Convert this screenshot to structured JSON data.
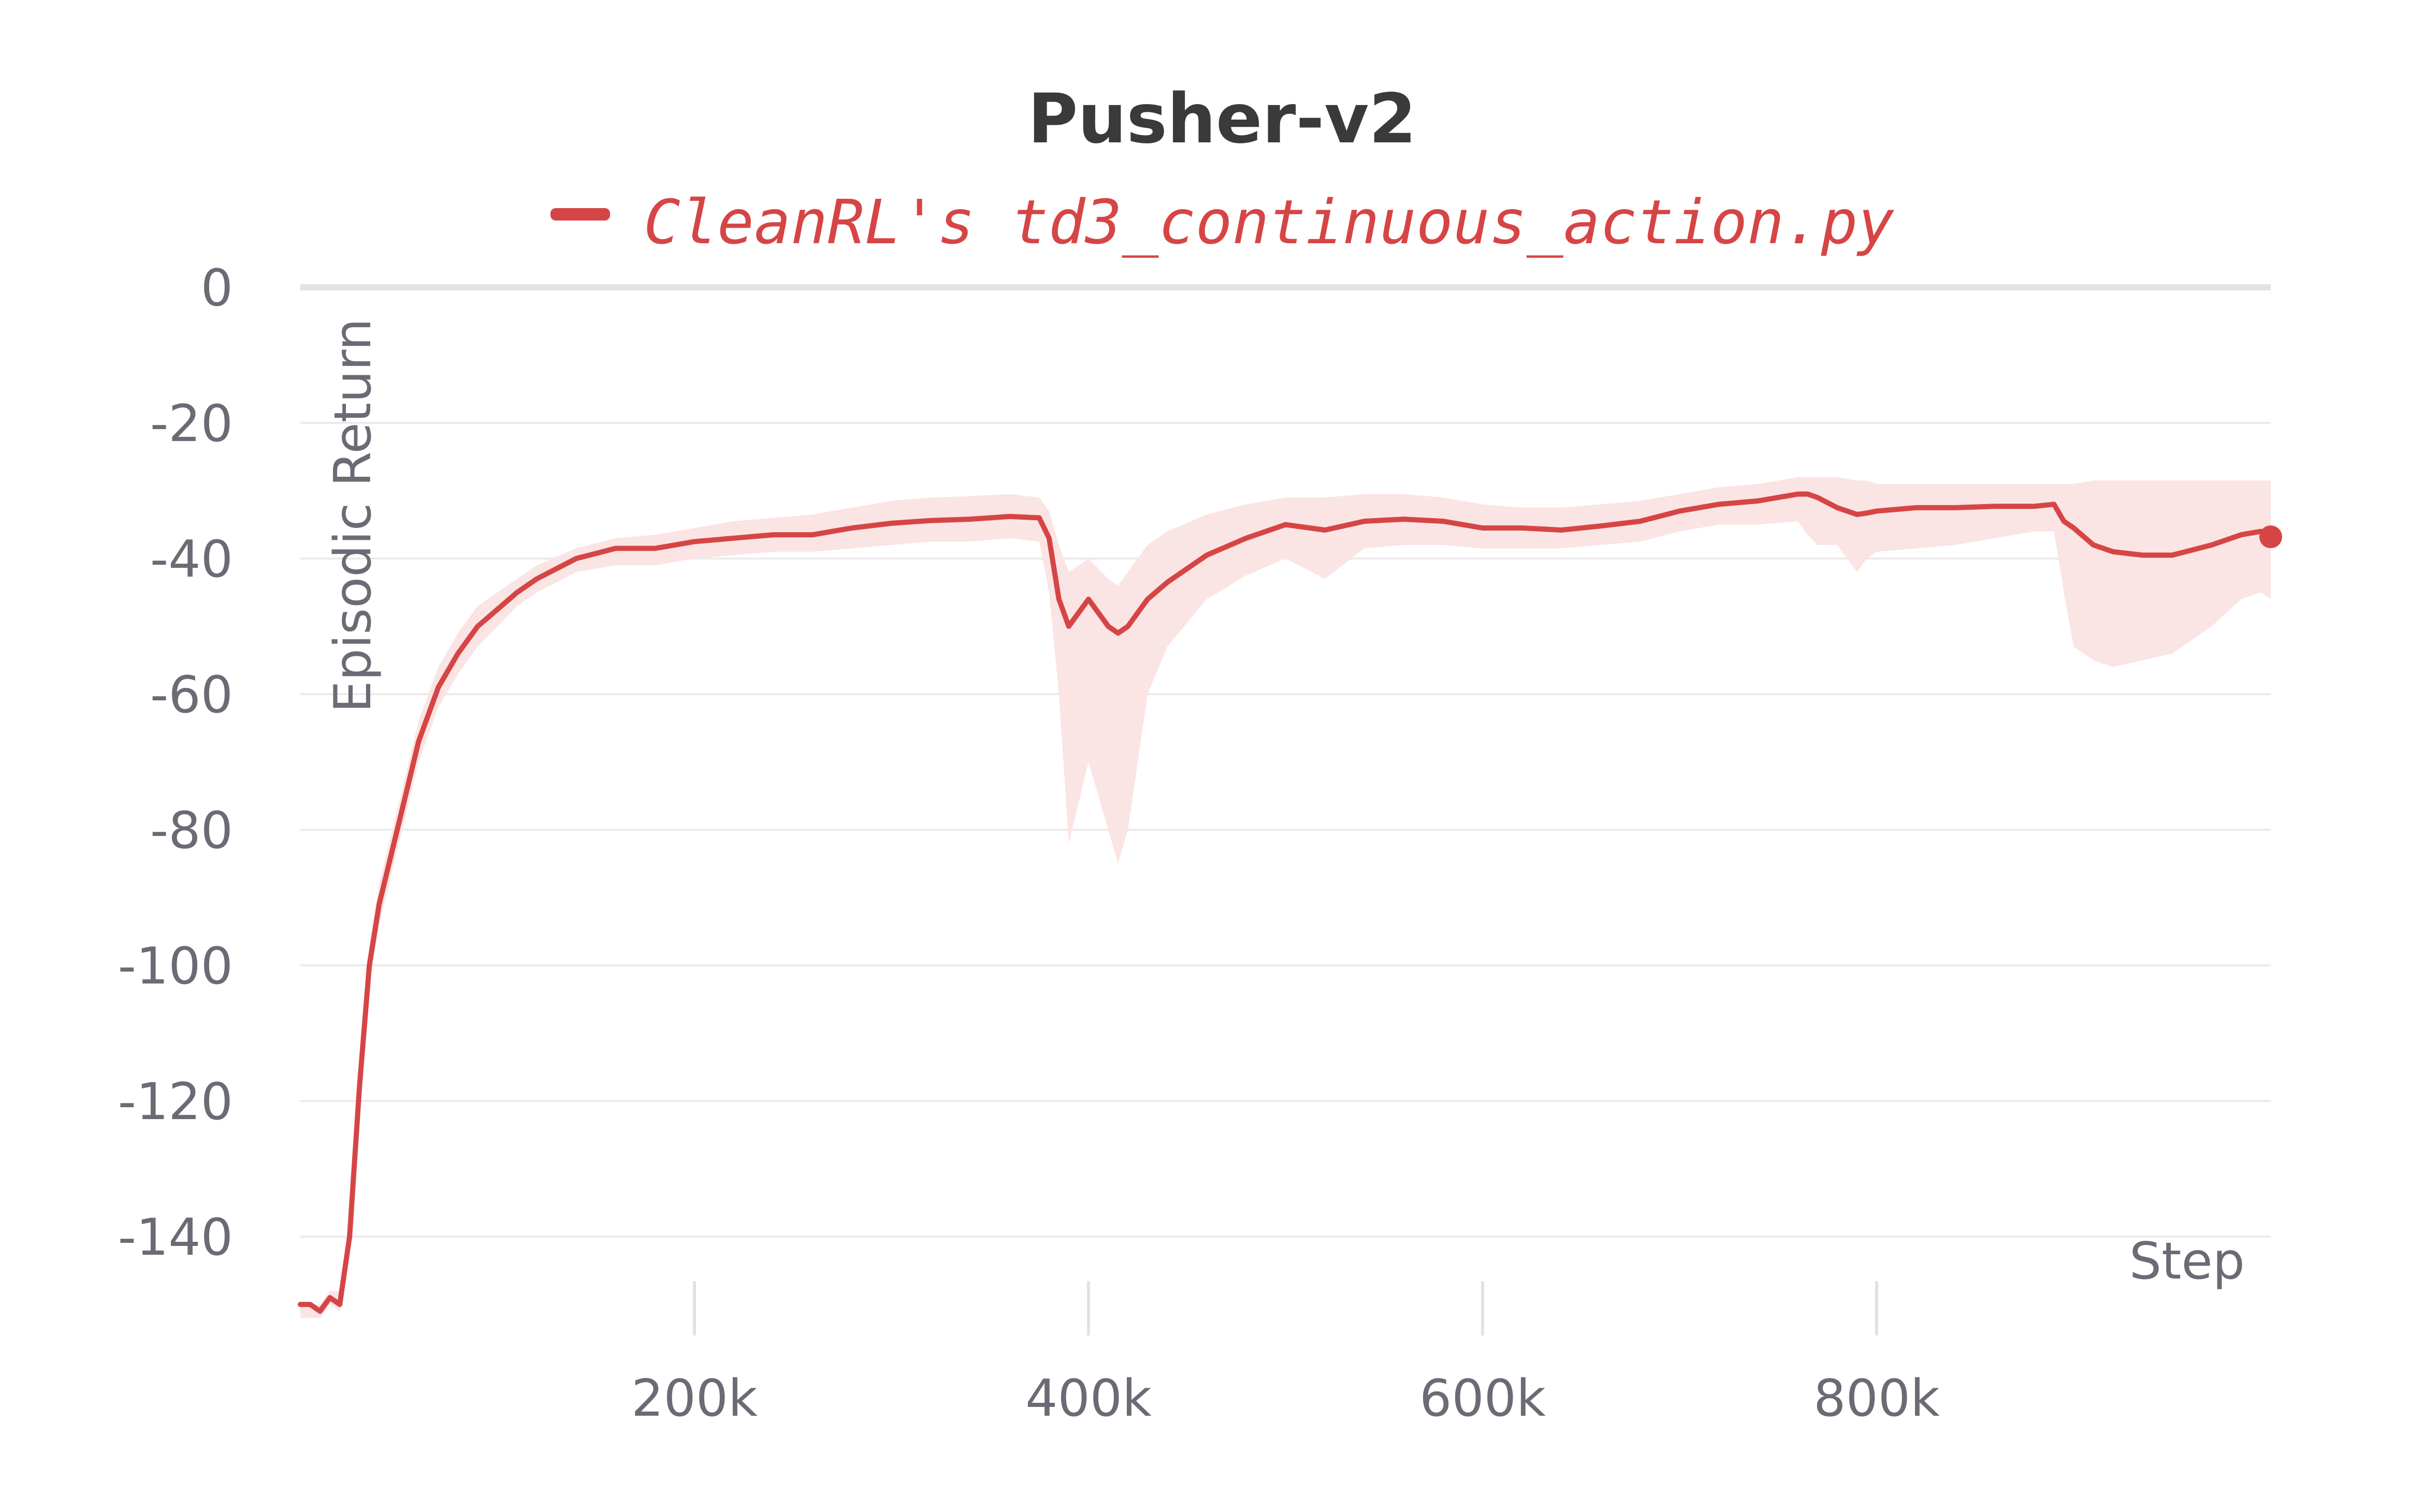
{
  "chart_data": {
    "type": "line",
    "title": "Pusher-v2",
    "xlabel": "Step",
    "ylabel": "Episodic Return",
    "xlim": [
      0,
      1000000
    ],
    "ylim": [
      -150,
      0
    ],
    "xticks": [
      200000,
      400000,
      600000,
      800000
    ],
    "xtick_labels": [
      "200k",
      "400k",
      "600k",
      "800k"
    ],
    "yticks": [
      0,
      -20,
      -40,
      -60,
      -80,
      -100,
      -120,
      -140
    ],
    "ytick_labels": [
      "0",
      "-20",
      "-40",
      "-60",
      "-80",
      "-100",
      "-120",
      "-140"
    ],
    "grid": true,
    "legend_position": "top",
    "series": [
      {
        "name": "CleanRL's td3_continuous_action.py",
        "color": "#d64545",
        "band_color": "#fbe4e4",
        "x": [
          0,
          5000,
          10000,
          15000,
          20000,
          25000,
          30000,
          35000,
          40000,
          50000,
          60000,
          70000,
          80000,
          90000,
          100000,
          110000,
          120000,
          140000,
          160000,
          180000,
          200000,
          220000,
          240000,
          260000,
          280000,
          300000,
          320000,
          340000,
          360000,
          375000,
          380000,
          385000,
          390000,
          400000,
          410000,
          415000,
          420000,
          430000,
          440000,
          460000,
          480000,
          500000,
          520000,
          540000,
          560000,
          580000,
          600000,
          620000,
          640000,
          660000,
          680000,
          700000,
          720000,
          740000,
          760000,
          765000,
          770000,
          780000,
          790000,
          795000,
          800000,
          820000,
          840000,
          860000,
          880000,
          890000,
          895000,
          900000,
          910000,
          920000,
          935000,
          950000,
          970000,
          985000,
          995000,
          1000000
        ],
        "y": [
          -150,
          -150,
          -151,
          -149,
          -150,
          -140,
          -118,
          -100,
          -91,
          -79,
          -67,
          -59,
          -54,
          -50,
          -47.5,
          -45,
          -43,
          -40,
          -38.5,
          -38.5,
          -37.5,
          -37,
          -36.5,
          -36.5,
          -35.5,
          -34.8,
          -34.4,
          -34.2,
          -33.8,
          -34,
          -37,
          -46,
          -50,
          -46,
          -50,
          -51,
          -50,
          -46,
          -43.5,
          -39.5,
          -37,
          -35,
          -35.8,
          -34.5,
          -34.2,
          -34.5,
          -35.5,
          -35.5,
          -35.8,
          -35.2,
          -34.5,
          -33,
          -32,
          -31.5,
          -30.5,
          -30.5,
          -31,
          -32.5,
          -33.5,
          -33.3,
          -33,
          -32.5,
          -32.5,
          -32.3,
          -32.3,
          -32,
          -34.5,
          -35.5,
          -38,
          -39,
          -39.5,
          -39.5,
          -38,
          -36.5,
          -36,
          -36.8
        ],
        "upper": [
          -150,
          -150,
          -150,
          -148,
          -148,
          -138,
          -115,
          -97,
          -88,
          -76,
          -64,
          -56,
          -51,
          -47,
          -45,
          -43,
          -41,
          -38.5,
          -37,
          -36.5,
          -35.5,
          -34.5,
          -34,
          -33.5,
          -32.5,
          -31.5,
          -31,
          -30.8,
          -30.5,
          -31,
          -33,
          -38,
          -42,
          -40,
          -43,
          -44,
          -42,
          -38,
          -36,
          -33.5,
          -32,
          -31,
          -31,
          -30.5,
          -30.5,
          -31,
          -32,
          -32.5,
          -32.5,
          -32,
          -31.5,
          -30.5,
          -29.5,
          -29,
          -28,
          -28,
          -28,
          -28,
          -28.5,
          -28.5,
          -29,
          -29,
          -29,
          -29,
          -29,
          -29,
          -29,
          -29,
          -28.5,
          -28.5,
          -28.5,
          -28.5,
          -28.5,
          -28.5,
          -28.5,
          -28.5
        ],
        "lower": [
          -152,
          -152,
          -152,
          -150,
          -151,
          -143,
          -122,
          -103,
          -94,
          -82,
          -70,
          -62,
          -57,
          -53,
          -50,
          -47,
          -45,
          -42,
          -41,
          -41,
          -40,
          -39.5,
          -39,
          -39,
          -38.5,
          -38,
          -37.5,
          -37.5,
          -37,
          -37.5,
          -45,
          -60,
          -82,
          -70,
          -80,
          -85,
          -80,
          -60,
          -53,
          -46,
          -42.5,
          -40,
          -43,
          -38.5,
          -38,
          -38,
          -38.5,
          -38.5,
          -38.5,
          -38,
          -37.5,
          -36,
          -35,
          -35,
          -34.5,
          -36.5,
          -38,
          -38,
          -42,
          -40,
          -39,
          -38.5,
          -38,
          -37,
          -36,
          -36,
          -45,
          -53,
          -55,
          -56,
          -55,
          -54,
          -50,
          -46,
          -45,
          -46
        ]
      }
    ]
  }
}
